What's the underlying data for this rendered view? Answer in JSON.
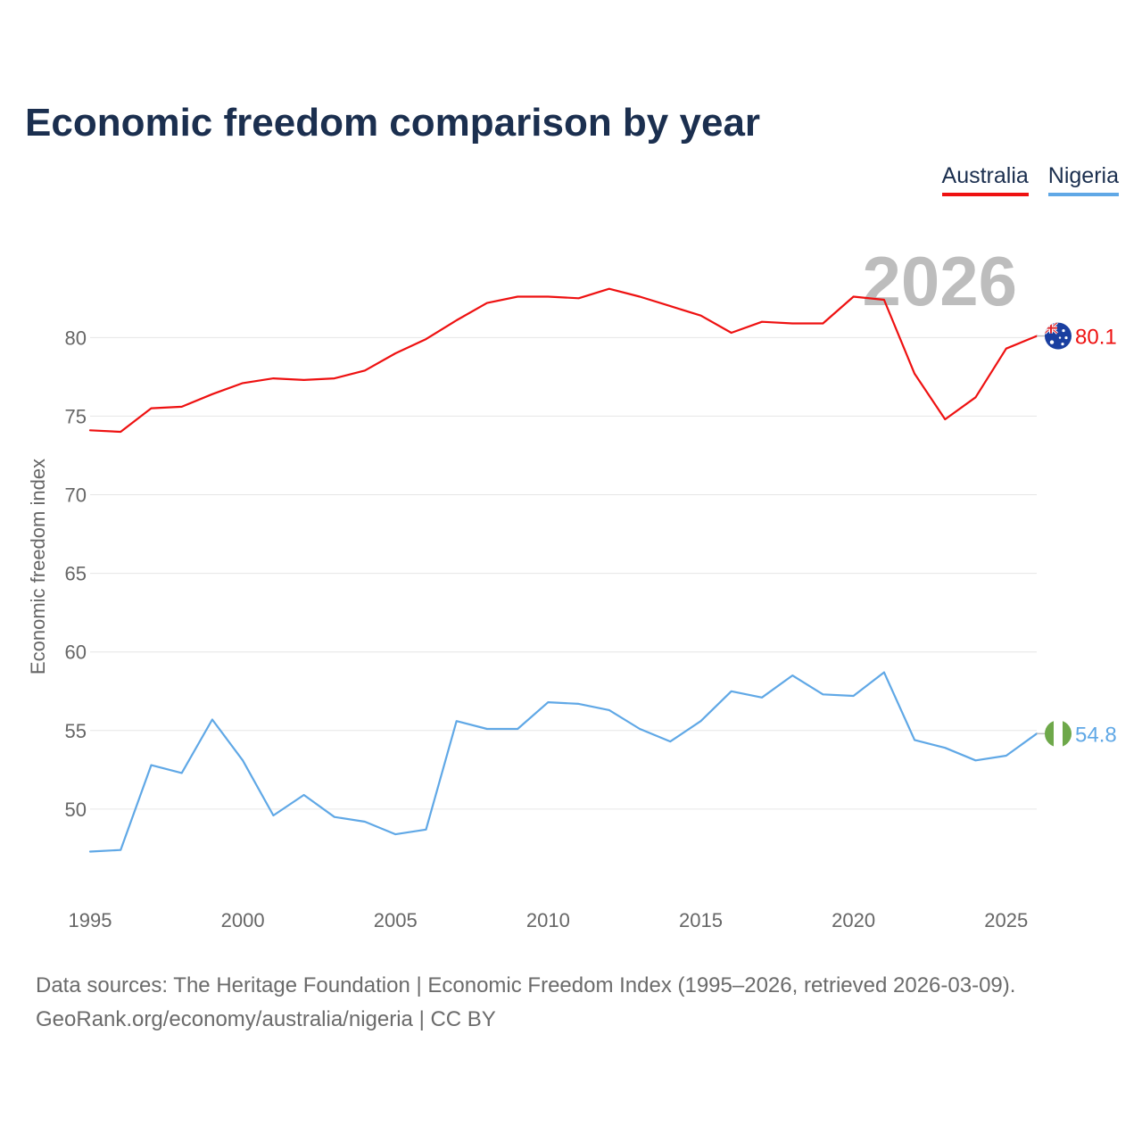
{
  "header": {
    "title": "Economic freedom comparison by year"
  },
  "footer": {
    "line1": "Data sources: The Heritage Foundation | Economic Freedom Index (1995–2026, retrieved 2026-03-09).",
    "line2": "GeoRank.org/economy/australia/nigeria | CC BY"
  },
  "colors": {
    "australia": "#ee1111",
    "nigeria": "#60a8e6",
    "grid": "#e6e6e6",
    "title": "#1b2f4f"
  },
  "chart_data": {
    "type": "line",
    "title": "Economic freedom comparison by year",
    "xlabel": "",
    "ylabel": "Economic freedom index",
    "xlim": [
      1995,
      2026
    ],
    "ylim": [
      45,
      87
    ],
    "yticks": [
      50,
      55,
      60,
      65,
      70,
      75,
      80
    ],
    "xticks": [
      1995,
      2000,
      2005,
      2010,
      2015,
      2020,
      2025
    ],
    "current_year": "2026",
    "x": [
      1995,
      1996,
      1997,
      1998,
      1999,
      2000,
      2001,
      2002,
      2003,
      2004,
      2005,
      2006,
      2007,
      2008,
      2009,
      2010,
      2011,
      2012,
      2013,
      2014,
      2015,
      2016,
      2017,
      2018,
      2019,
      2020,
      2021,
      2022,
      2023,
      2024,
      2025,
      2026
    ],
    "series": [
      {
        "name": "Australia",
        "color": "#ee1111",
        "icon": "australia-flag-icon",
        "end_label": "80.1",
        "values": [
          74.1,
          74.0,
          75.5,
          75.6,
          76.4,
          77.1,
          77.4,
          77.3,
          77.4,
          77.9,
          79.0,
          79.9,
          81.1,
          82.2,
          82.6,
          82.6,
          82.5,
          83.1,
          82.6,
          82.0,
          81.4,
          80.3,
          81.0,
          80.9,
          80.9,
          82.6,
          82.4,
          77.7,
          74.8,
          76.2,
          79.3,
          80.1
        ]
      },
      {
        "name": "Nigeria",
        "color": "#60a8e6",
        "icon": "nigeria-flag-icon",
        "end_label": "54.8",
        "values": [
          47.3,
          47.4,
          52.8,
          52.3,
          55.7,
          53.1,
          49.6,
          50.9,
          49.5,
          49.2,
          48.4,
          48.7,
          55.6,
          55.1,
          55.1,
          56.8,
          56.7,
          56.3,
          55.1,
          54.3,
          55.6,
          57.5,
          57.1,
          58.5,
          57.3,
          57.2,
          58.7,
          54.4,
          53.9,
          53.1,
          53.4,
          54.8
        ]
      }
    ],
    "legend_position": "top-right"
  }
}
